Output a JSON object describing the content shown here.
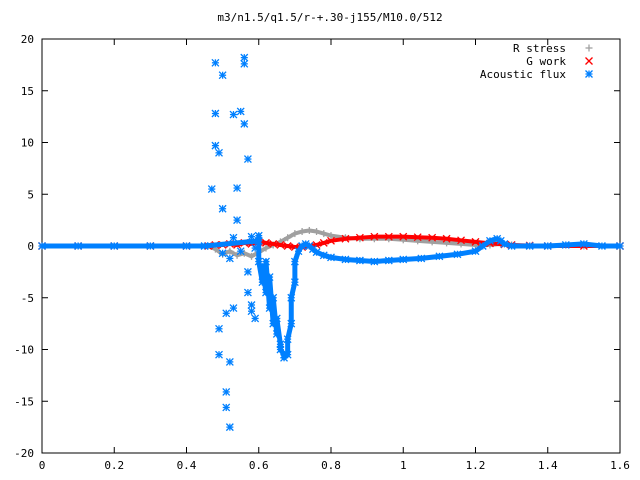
{
  "chart_data": {
    "type": "scatter",
    "title": "m3/n1.5/q1.5/r-+.30-j155/M10.0/512",
    "xlabel": "",
    "ylabel": "",
    "xlim": [
      0,
      1.6
    ],
    "ylim": [
      -20,
      20
    ],
    "x_ticks": [
      "0",
      "0.2",
      "0.4",
      "0.6",
      "0.8",
      "1",
      "1.2",
      "1.4",
      "1.6"
    ],
    "y_ticks": [
      "20",
      "15",
      "10",
      "5",
      "0",
      "-5",
      "-10",
      "-15",
      "-20"
    ],
    "grid": false,
    "legend_position": "top-right",
    "series": [
      {
        "name": "R stress",
        "marker": "plus",
        "color": "#a0a0a0",
        "x": [
          0.0,
          0.1,
          0.2,
          0.3,
          0.4,
          0.46,
          0.48,
          0.5,
          0.52,
          0.54,
          0.56,
          0.58,
          0.6,
          0.62,
          0.64,
          0.66,
          0.68,
          0.7,
          0.72,
          0.74,
          0.76,
          0.78,
          0.8,
          0.84,
          0.88,
          0.92,
          0.96,
          1.0,
          1.04,
          1.08,
          1.12,
          1.16,
          1.2,
          1.24,
          1.27,
          1.3,
          1.35,
          1.4,
          1.5,
          1.6
        ],
        "y": [
          0,
          0,
          0,
          0,
          0,
          0,
          -0.3,
          -0.8,
          -0.5,
          -0.9,
          -0.7,
          -1.0,
          -0.6,
          -0.2,
          0.1,
          0.4,
          0.8,
          1.2,
          1.4,
          1.5,
          1.4,
          1.2,
          1.0,
          0.8,
          0.7,
          0.7,
          0.7,
          0.6,
          0.5,
          0.4,
          0.3,
          0.2,
          0.1,
          0.1,
          0.2,
          0.1,
          0,
          0,
          0,
          0
        ]
      },
      {
        "name": "G work",
        "marker": "cross",
        "color": "#ff0000",
        "x": [
          0.0,
          0.1,
          0.2,
          0.3,
          0.4,
          0.46,
          0.48,
          0.5,
          0.52,
          0.54,
          0.56,
          0.58,
          0.6,
          0.62,
          0.64,
          0.66,
          0.68,
          0.7,
          0.72,
          0.74,
          0.76,
          0.78,
          0.8,
          0.84,
          0.88,
          0.92,
          0.96,
          1.0,
          1.04,
          1.08,
          1.12,
          1.16,
          1.2,
          1.24,
          1.28,
          1.3,
          1.35,
          1.4,
          1.5,
          1.6
        ],
        "y": [
          0,
          0,
          0,
          0,
          0,
          0,
          0.1,
          0.1,
          0.2,
          0.1,
          0.3,
          0.2,
          0.4,
          0.3,
          0.2,
          0.1,
          0,
          -0.1,
          -0.1,
          0,
          0.1,
          0.3,
          0.5,
          0.7,
          0.8,
          0.9,
          0.9,
          0.9,
          0.85,
          0.8,
          0.7,
          0.55,
          0.4,
          0.25,
          0.15,
          0.1,
          0.05,
          0,
          0,
          0
        ]
      },
      {
        "name": "Acoustic flux",
        "marker": "star",
        "color": "#0080ff",
        "x": [
          0.0,
          0.1,
          0.2,
          0.3,
          0.4,
          0.45,
          0.47,
          0.48,
          0.48,
          0.48,
          0.49,
          0.49,
          0.49,
          0.5,
          0.5,
          0.5,
          0.51,
          0.51,
          0.51,
          0.52,
          0.52,
          0.52,
          0.53,
          0.53,
          0.53,
          0.54,
          0.54,
          0.55,
          0.55,
          0.56,
          0.56,
          0.56,
          0.57,
          0.57,
          0.57,
          0.58,
          0.58,
          0.58,
          0.59,
          0.59,
          0.6,
          0.6,
          0.6,
          0.61,
          0.61,
          0.62,
          0.62,
          0.63,
          0.63,
          0.64,
          0.64,
          0.65,
          0.65,
          0.66,
          0.66,
          0.67,
          0.67,
          0.68,
          0.68,
          0.69,
          0.69,
          0.7,
          0.7,
          0.71,
          0.72,
          0.73,
          0.74,
          0.75,
          0.76,
          0.78,
          0.8,
          0.84,
          0.88,
          0.92,
          0.96,
          1.0,
          1.05,
          1.1,
          1.15,
          1.2,
          1.22,
          1.24,
          1.26,
          1.27,
          1.28,
          1.3,
          1.35,
          1.4,
          1.45,
          1.5,
          1.55,
          1.6
        ],
        "y": [
          0,
          0,
          0,
          0,
          0,
          0,
          5.5,
          12.8,
          17.7,
          9.7,
          -8.0,
          -10.5,
          9.0,
          16.5,
          -0.7,
          3.6,
          -6.5,
          -14.1,
          -15.6,
          -17.5,
          -11.2,
          -1.2,
          -6.0,
          0.8,
          12.7,
          2.5,
          5.6,
          13.0,
          -0.5,
          17.6,
          18.2,
          11.8,
          -2.5,
          8.4,
          -4.5,
          -5.7,
          0.9,
          -6.3,
          -7.0,
          -0.2,
          0.5,
          1.0,
          -1.5,
          -3.5,
          -2.0,
          -4.5,
          -1.5,
          -6.0,
          -3.0,
          -7.5,
          -5.0,
          -8.5,
          -7.0,
          -9.5,
          -10.0,
          -10.5,
          -10.8,
          -10.5,
          -9.0,
          -7.5,
          -5.0,
          -3.5,
          -1.5,
          -0.5,
          0,
          0.2,
          0,
          -0.3,
          -0.6,
          -0.9,
          -1.1,
          -1.3,
          -1.4,
          -1.5,
          -1.4,
          -1.3,
          -1.2,
          -1.0,
          -0.8,
          -0.5,
          0,
          0.5,
          0.7,
          0.5,
          0.2,
          0,
          0,
          0,
          0.1,
          0.2,
          0,
          0
        ]
      }
    ]
  }
}
